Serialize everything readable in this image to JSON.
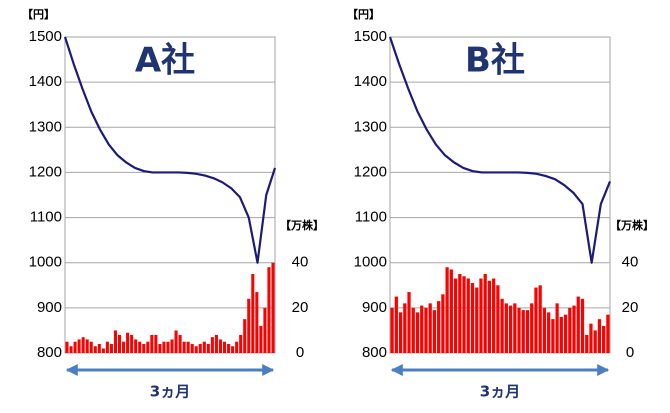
{
  "chart_data": [
    {
      "type": "combo",
      "title": "A社",
      "y_label": "【円】",
      "y2_label": "【万株】",
      "x_label": "3ヵ月",
      "ylim": [
        800,
        1500
      ],
      "yticks": [
        800,
        900,
        1000,
        1100,
        1200,
        1300,
        1400,
        1500
      ],
      "y2lim": [
        0,
        140
      ],
      "y2ticks": [
        0,
        20,
        40
      ],
      "grid": true,
      "series": [
        {
          "type": "line",
          "color": "#1c1c78",
          "values": [
            1500,
            1440,
            1385,
            1335,
            1295,
            1262,
            1238,
            1222,
            1210,
            1203,
            1200,
            1200,
            1200,
            1200,
            1199,
            1197,
            1193,
            1187,
            1178,
            1165,
            1145,
            1100,
            1000,
            1150,
            1210
          ]
        },
        {
          "type": "bar",
          "axis": "y2",
          "color": "#ff0000",
          "values": [
            5,
            3,
            5,
            6,
            7,
            6,
            5,
            3,
            4,
            2,
            5,
            4,
            10,
            8,
            5,
            9,
            8,
            6,
            5,
            4,
            5,
            8,
            8,
            4,
            5,
            5,
            6,
            10,
            8,
            5,
            5,
            4,
            3,
            4,
            5,
            4,
            7,
            8,
            6,
            5,
            4,
            3,
            5,
            8,
            15,
            24,
            35,
            27,
            12,
            20,
            38,
            40
          ]
        }
      ]
    },
    {
      "type": "combo",
      "title": "B社",
      "y_label": "【円】",
      "y2_label": "【万株】",
      "x_label": "3ヵ月",
      "ylim": [
        800,
        1500
      ],
      "yticks": [
        800,
        900,
        1000,
        1100,
        1200,
        1300,
        1400,
        1500
      ],
      "y2lim": [
        0,
        140
      ],
      "y2ticks": [
        0,
        20,
        40
      ],
      "grid": true,
      "series": [
        {
          "type": "line",
          "color": "#1c1c78",
          "values": [
            1500,
            1440,
            1385,
            1335,
            1295,
            1262,
            1238,
            1222,
            1210,
            1203,
            1200,
            1200,
            1200,
            1200,
            1200,
            1199,
            1197,
            1192,
            1185,
            1172,
            1155,
            1130,
            1000,
            1130,
            1180
          ]
        },
        {
          "type": "bar",
          "axis": "y2",
          "color": "#ff0000",
          "values": [
            20,
            25,
            18,
            22,
            27,
            20,
            18,
            21,
            20,
            22,
            19,
            23,
            26,
            38,
            37,
            33,
            35,
            34,
            33,
            31,
            29,
            33,
            35,
            32,
            33,
            30,
            24,
            22,
            21,
            22,
            20,
            19,
            19,
            22,
            29,
            30,
            20,
            18,
            15,
            22,
            16,
            17,
            20,
            21,
            25,
            24,
            8,
            13,
            10,
            15,
            12,
            17
          ]
        }
      ]
    }
  ]
}
